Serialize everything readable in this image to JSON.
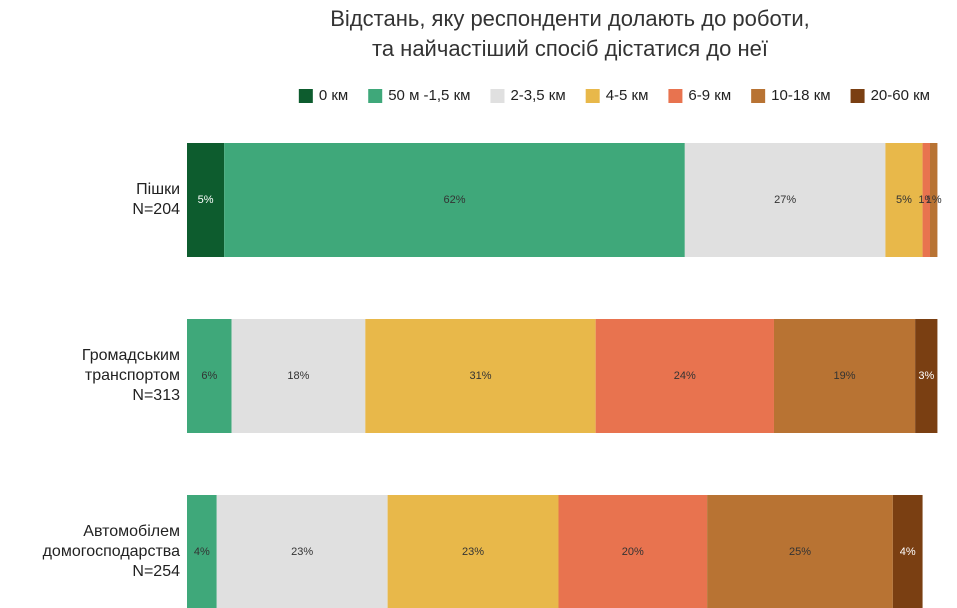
{
  "chart_data": {
    "type": "stacked_bar_horizontal",
    "title": "Відстань, яку респонденти долають до роботи,\nта найчастіший спосіб дістатися до неї",
    "categories": [
      "Пішки\nN=204",
      "Громадським\nтранспортом\nN=313",
      "Автомобілем\nдомогосподарства\nN=254"
    ],
    "xlim": [
      0,
      100
    ],
    "legend": "top-right",
    "series": [
      {
        "name": "0 км",
        "color": "#0d5c2e",
        "values": [
          5,
          0,
          0
        ],
        "value_labels": [
          "5%",
          "0%",
          "0%"
        ]
      },
      {
        "name": "50 м -1,5 км",
        "color": "#3fa87a",
        "values": [
          62,
          6,
          4
        ],
        "value_labels": [
          "62%",
          "6%",
          "4%"
        ]
      },
      {
        "name": "2-3,5 км",
        "color": "#e0e0e0",
        "values": [
          27,
          18,
          23
        ],
        "value_labels": [
          "27%",
          "18%",
          "23%"
        ]
      },
      {
        "name": "4-5 км",
        "color": "#e8b84a",
        "values": [
          5,
          31,
          23
        ],
        "value_labels": [
          "5%",
          "31%",
          "23%"
        ]
      },
      {
        "name": "6-9 км",
        "color": "#e8734f",
        "values": [
          1,
          24,
          20
        ],
        "value_labels": [
          "1%",
          "24%",
          "20%"
        ]
      },
      {
        "name": "10-18 км",
        "color": "#b87333",
        "values": [
          1,
          19,
          25
        ],
        "value_labels": [
          "1%",
          "19%",
          "25%"
        ]
      },
      {
        "name": "20-60 км",
        "color": "#7a3f12",
        "values": [
          0,
          3,
          4
        ],
        "value_labels": [
          null,
          "3%",
          "4%"
        ]
      }
    ]
  }
}
